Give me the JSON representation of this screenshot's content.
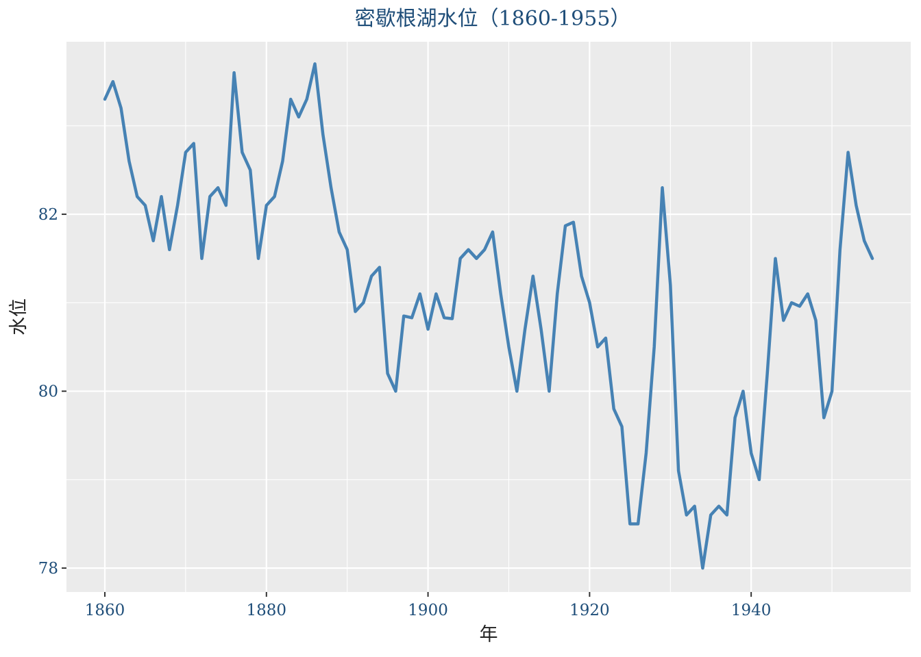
{
  "chart_data": {
    "type": "line",
    "title": "密歇根湖水位（1860-1955）",
    "xlabel": "年",
    "ylabel": "水位",
    "xlim": [
      1855.25,
      1959.75
    ],
    "ylim": [
      77.73,
      83.95
    ],
    "x_ticks": [
      1860,
      1880,
      1900,
      1920,
      1940
    ],
    "y_ticks": [
      78,
      80,
      82
    ],
    "grid": true,
    "legend": "none",
    "colors": {
      "panel": "#ebebeb",
      "grid_major": "#ffffff",
      "line": "#4682b4",
      "title": "#1f4e79",
      "tick": "#1f4e79"
    },
    "series": [
      {
        "x": [
          1860,
          1861,
          1862,
          1863,
          1864,
          1865,
          1866,
          1867,
          1868,
          1869,
          1870,
          1871,
          1872,
          1873,
          1874,
          1875,
          1876,
          1877,
          1878,
          1879,
          1880,
          1881,
          1882,
          1883,
          1884,
          1885,
          1886,
          1887,
          1888,
          1889,
          1890,
          1891,
          1892,
          1893,
          1894,
          1895,
          1896,
          1897,
          1898,
          1899,
          1900,
          1901,
          1902,
          1903,
          1904,
          1905,
          1906,
          1907,
          1908,
          1909,
          1910,
          1911,
          1912,
          1913,
          1914,
          1915,
          1916,
          1917,
          1918,
          1919,
          1920,
          1921,
          1922,
          1923,
          1924,
          1925,
          1926,
          1927,
          1928,
          1929,
          1930,
          1931,
          1932,
          1933,
          1934,
          1935,
          1936,
          1937,
          1938,
          1939,
          1940,
          1941,
          1942,
          1943,
          1944,
          1945,
          1946,
          1947,
          1948,
          1949,
          1950,
          1951,
          1952,
          1953,
          1954,
          1955
        ],
        "values": [
          83.3,
          83.5,
          83.2,
          82.6,
          82.2,
          82.1,
          81.7,
          82.2,
          81.6,
          82.1,
          82.7,
          82.8,
          81.5,
          82.2,
          82.3,
          82.1,
          83.6,
          82.7,
          82.5,
          81.5,
          82.1,
          82.2,
          82.6,
          83.3,
          83.1,
          83.3,
          83.7,
          82.9,
          82.3,
          81.8,
          81.6,
          80.9,
          81.0,
          81.3,
          81.4,
          80.2,
          80.0,
          80.85,
          80.83,
          81.1,
          80.7,
          81.1,
          80.83,
          80.82,
          81.5,
          81.6,
          81.5,
          81.6,
          81.8,
          81.1,
          80.5,
          80.0,
          80.7,
          81.3,
          80.7,
          80.0,
          81.1,
          81.87,
          81.91,
          81.3,
          81.0,
          80.5,
          80.6,
          79.8,
          79.6,
          78.5,
          78.5,
          79.3,
          80.5,
          82.3,
          81.2,
          79.1,
          78.6,
          78.7,
          78.0,
          78.6,
          78.7,
          78.6,
          79.7,
          80.0,
          79.3,
          79.0,
          80.2,
          81.5,
          80.8,
          81.0,
          80.96,
          81.1,
          80.8,
          79.7,
          80.0,
          81.6,
          82.7,
          82.1,
          81.7,
          81.5
        ]
      }
    ]
  }
}
